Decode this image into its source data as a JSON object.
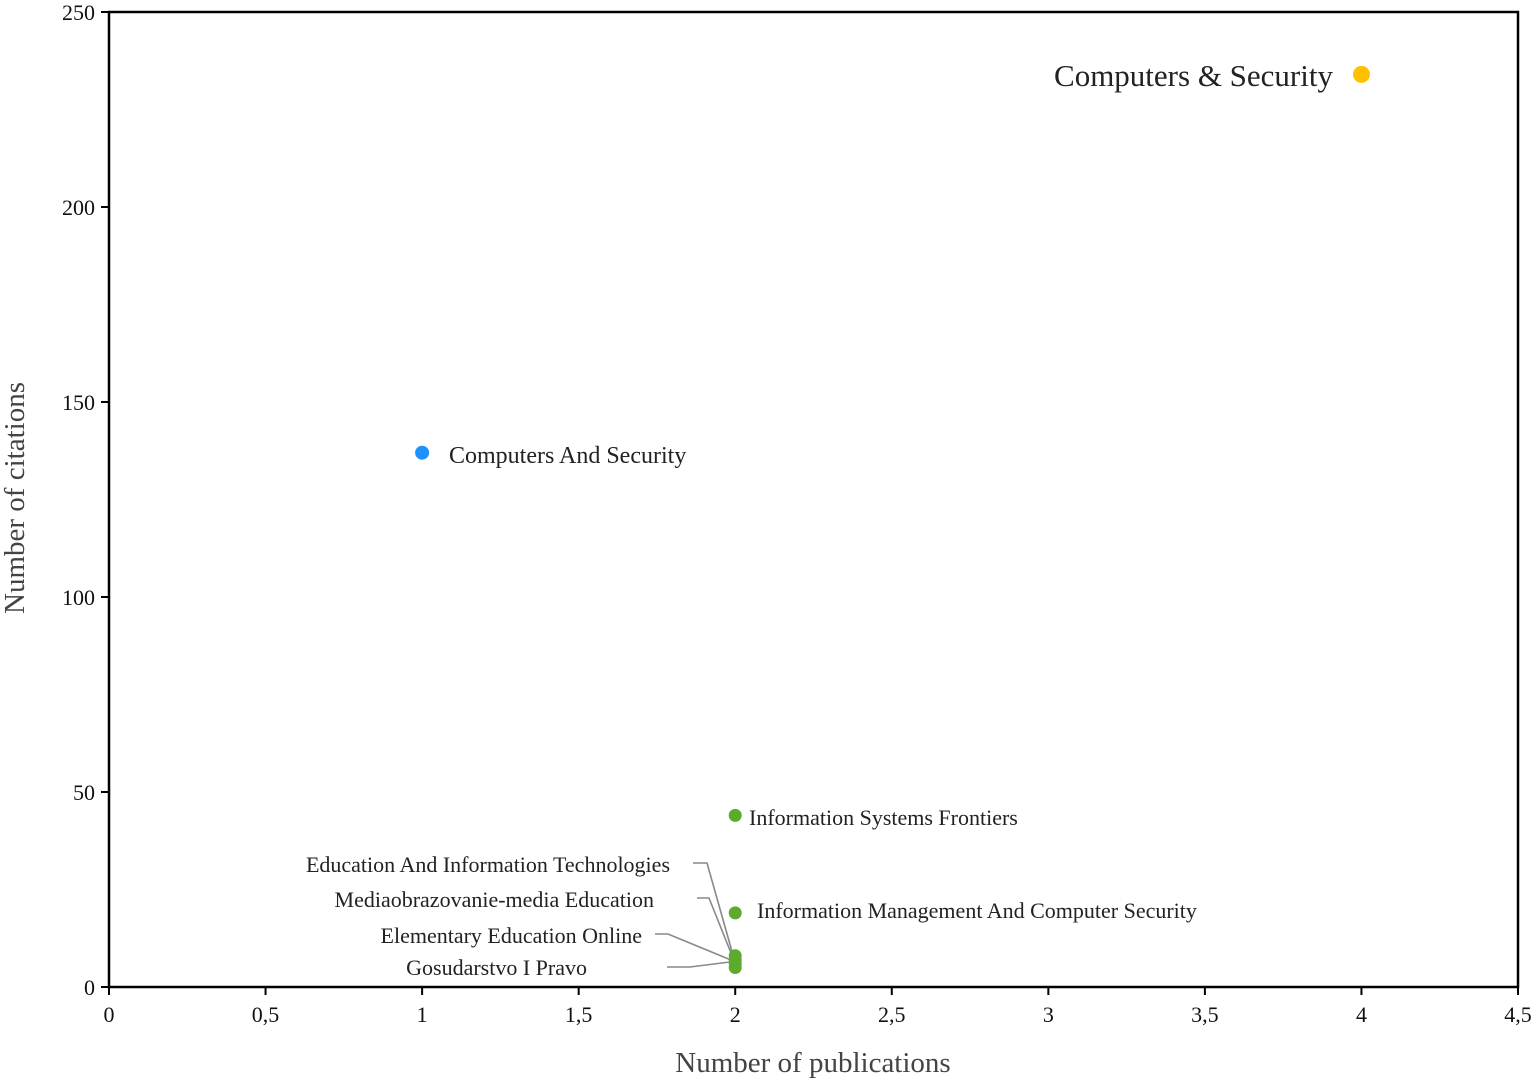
{
  "chart_data": {
    "type": "scatter",
    "xlabel": "Number of publications",
    "ylabel": "Number of citations",
    "xlim": [
      0,
      4.5
    ],
    "ylim": [
      0,
      250
    ],
    "xticks": [
      "0",
      "0,5",
      "1",
      "1,5",
      "2",
      "2,5",
      "3",
      "3,5",
      "4",
      "4,5"
    ],
    "yticks": [
      "0",
      "50",
      "100",
      "150",
      "200",
      "250"
    ],
    "grid": false,
    "legend": "none",
    "points": [
      {
        "label": "Computers & Security",
        "x": 4,
        "y": 234,
        "color": "#FFC000"
      },
      {
        "label": "Computers And Security",
        "x": 1,
        "y": 137,
        "color": "#1E90FF"
      },
      {
        "label": "Information Systems Frontiers",
        "x": 2,
        "y": 44,
        "color": "#5DAA2F"
      },
      {
        "label": "Information Management And Computer Security",
        "x": 2,
        "y": 19,
        "color": "#5DAA2F"
      },
      {
        "label": "Education And Information Technologies",
        "x": 2,
        "y": 8,
        "color": "#5DAA2F"
      },
      {
        "label": "Mediaobrazovanie-media Education",
        "x": 2,
        "y": 7,
        "color": "#5DAA2F"
      },
      {
        "label": "Elementary Education Online",
        "x": 2,
        "y": 6,
        "color": "#5DAA2F"
      },
      {
        "label": "Gosudarstvo I Pravo",
        "x": 2,
        "y": 5,
        "color": "#5DAA2F"
      }
    ]
  }
}
